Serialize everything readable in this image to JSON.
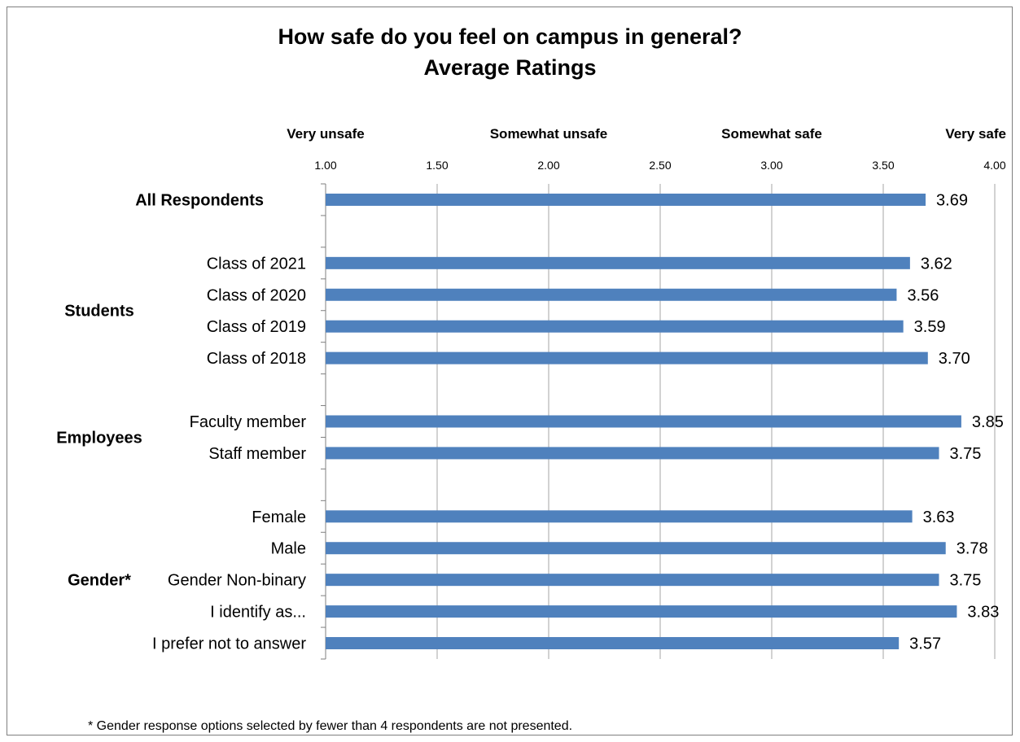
{
  "chart_data": {
    "type": "bar",
    "orientation": "horizontal",
    "title": "How safe do you feel on campus in general?",
    "subtitle": "Average Ratings",
    "footnote": "* Gender response options selected by fewer than 4 respondents are not presented.",
    "xlim": [
      1.0,
      4.0
    ],
    "x_ticks": [
      "1.00",
      "1.50",
      "2.00",
      "2.50",
      "3.00",
      "3.50",
      "4.00"
    ],
    "x_tick_values": [
      1.0,
      1.5,
      2.0,
      2.5,
      3.0,
      3.5,
      4.0
    ],
    "rating_labels": [
      {
        "text": "Very unsafe",
        "value": 1.0
      },
      {
        "text": "Somewhat unsafe",
        "value": 2.0
      },
      {
        "text": "Somewhat safe",
        "value": 3.0
      },
      {
        "text": "Very safe",
        "value": 4.0
      }
    ],
    "grid": "vertical",
    "bar_color": "#4f81bd",
    "groups": [
      {
        "label": "All Respondents",
        "categories": [
          {
            "label": "",
            "value": 3.69,
            "value_label": "3.69"
          }
        ]
      },
      {
        "label": "Students",
        "categories": [
          {
            "label": "Class of 2021",
            "value": 3.62,
            "value_label": "3.62"
          },
          {
            "label": "Class of 2020",
            "value": 3.56,
            "value_label": "3.56"
          },
          {
            "label": "Class of 2019",
            "value": 3.59,
            "value_label": "3.59"
          },
          {
            "label": "Class of 2018",
            "value": 3.7,
            "value_label": "3.70"
          }
        ]
      },
      {
        "label": "Employees",
        "categories": [
          {
            "label": "Faculty member",
            "value": 3.85,
            "value_label": "3.85"
          },
          {
            "label": "Staff member",
            "value": 3.75,
            "value_label": "3.75"
          }
        ]
      },
      {
        "label": "Gender*",
        "categories": [
          {
            "label": "Female",
            "value": 3.63,
            "value_label": "3.63"
          },
          {
            "label": "Male",
            "value": 3.78,
            "value_label": "3.78"
          },
          {
            "label": "Gender Non-binary",
            "value": 3.75,
            "value_label": "3.75"
          },
          {
            "label": "I identify as...",
            "value": 3.83,
            "value_label": "3.83"
          },
          {
            "label": "I prefer not to answer",
            "value": 3.57,
            "value_label": "3.57"
          }
        ]
      }
    ]
  }
}
